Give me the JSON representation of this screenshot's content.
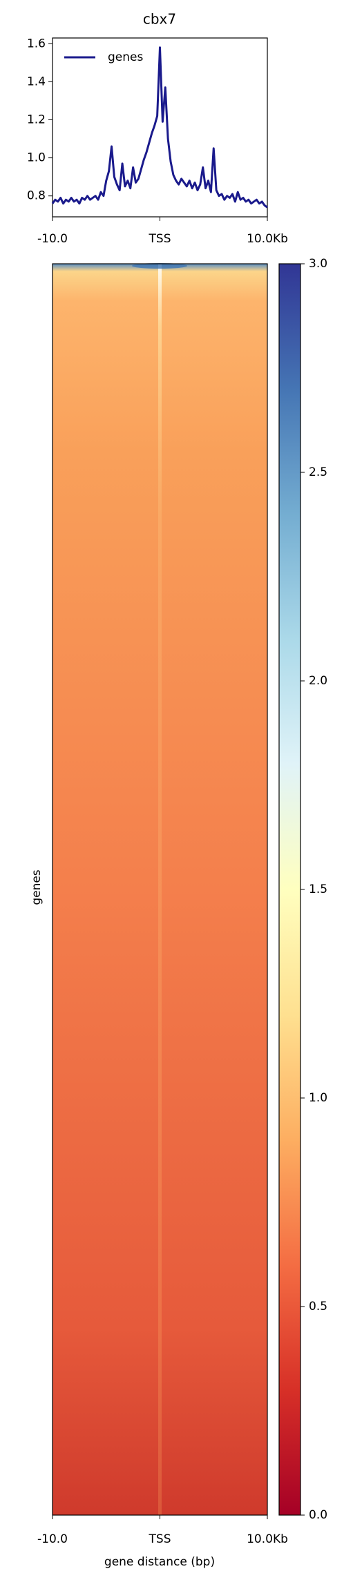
{
  "chart_data": [
    {
      "type": "line",
      "title": "cbx7",
      "x": [
        -10000,
        -9750,
        -9500,
        -9250,
        -9000,
        -8750,
        -8500,
        -8250,
        -8000,
        -7750,
        -7500,
        -7250,
        -7000,
        -6750,
        -6500,
        -6250,
        -6000,
        -5750,
        -5500,
        -5250,
        -5000,
        -4750,
        -4500,
        -4250,
        -4000,
        -3750,
        -3500,
        -3250,
        -3000,
        -2750,
        -2500,
        -2250,
        -2000,
        -1750,
        -1500,
        -1250,
        -1000,
        -750,
        -500,
        -250,
        0,
        250,
        500,
        750,
        1000,
        1250,
        1500,
        1750,
        2000,
        2250,
        2500,
        2750,
        3000,
        3250,
        3500,
        3750,
        4000,
        4250,
        4500,
        4750,
        5000,
        5250,
        5500,
        5750,
        6000,
        6250,
        6500,
        6750,
        7000,
        7250,
        7500,
        7750,
        8000,
        8250,
        8500,
        8750,
        9000,
        9250,
        9500,
        9750,
        10000
      ],
      "series": [
        {
          "name": "genes",
          "color": "#1a1a8c",
          "values": [
            0.76,
            0.78,
            0.77,
            0.79,
            0.76,
            0.78,
            0.77,
            0.79,
            0.77,
            0.78,
            0.76,
            0.79,
            0.78,
            0.8,
            0.78,
            0.79,
            0.8,
            0.78,
            0.82,
            0.8,
            0.88,
            0.93,
            1.06,
            0.9,
            0.86,
            0.83,
            0.97,
            0.85,
            0.88,
            0.84,
            0.95,
            0.87,
            0.89,
            0.94,
            0.99,
            1.03,
            1.08,
            1.13,
            1.17,
            1.22,
            1.58,
            1.19,
            1.37,
            1.1,
            0.98,
            0.91,
            0.88,
            0.86,
            0.89,
            0.87,
            0.85,
            0.88,
            0.84,
            0.87,
            0.83,
            0.86,
            0.95,
            0.84,
            0.88,
            0.82,
            1.05,
            0.83,
            0.8,
            0.81,
            0.78,
            0.8,
            0.79,
            0.81,
            0.77,
            0.82,
            0.78,
            0.79,
            0.77,
            0.78,
            0.76,
            0.77,
            0.78,
            0.76,
            0.77,
            0.75,
            0.74
          ]
        }
      ],
      "xlim": [
        -10000,
        10000
      ],
      "xticks": [
        {
          "value": -10000,
          "label": "-10.0"
        },
        {
          "value": 0,
          "label": "TSS"
        },
        {
          "value": 10000,
          "label": "10.0Kb"
        }
      ],
      "ylim": [
        0.69,
        1.63
      ],
      "yticks": [
        0.8,
        {
          "value": 1.0,
          "label": "1.0"
        },
        1.2,
        1.4,
        1.6
      ],
      "legend": "upper left"
    },
    {
      "type": "heatmap",
      "ylabel": "genes",
      "xlabel": "gene distance (bp)",
      "xlim": [
        -10000,
        10000
      ],
      "xticks": [
        {
          "value": -10000,
          "label": "-10.0"
        },
        {
          "value": 0,
          "label": "TSS"
        },
        {
          "value": 10000,
          "label": "10.0Kb"
        }
      ],
      "zlim": [
        0,
        3
      ],
      "zticks": [
        {
          "value": 0,
          "label": "0.0"
        },
        0.5,
        {
          "value": 1,
          "label": "1.0"
        },
        1.5,
        {
          "value": 2,
          "label": "2.0"
        },
        2.5,
        {
          "value": 3,
          "label": "3.0"
        }
      ],
      "colormap": [
        "#a50026",
        "#d73027",
        "#f46d43",
        "#fdae61",
        "#fee090",
        "#ffffbf",
        "#e0f3f8",
        "#abd9e9",
        "#74add1",
        "#4575b4",
        "#313695"
      ]
    }
  ]
}
